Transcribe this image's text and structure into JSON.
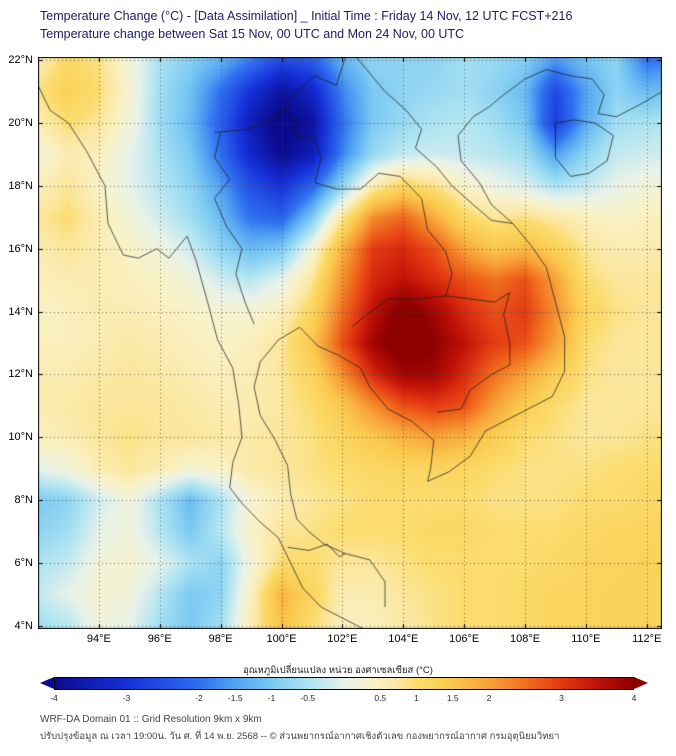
{
  "chart_data": {
    "type": "heatmap",
    "title": "Temperature Change (°C) - [Data Assimilation] _ Initial Time : Friday 14 Nov, 12 UTC FCST+216",
    "subtitle": "Temperature change between Sat 15 Nov, 00 UTC and Mon 24 Nov, 00 UTC",
    "xlabel": "",
    "ylabel": "",
    "xlim": [
      92,
      112.5
    ],
    "ylim": [
      3.9,
      22.1
    ],
    "grid": "dotted",
    "xticks": {
      "values": [
        94,
        96,
        98,
        100,
        102,
        104,
        106,
        108,
        110,
        112
      ],
      "labels": [
        "94°E",
        "96°E",
        "98°E",
        "100°E",
        "102°E",
        "104°E",
        "106°E",
        "108°E",
        "110°E",
        "112°E"
      ]
    },
    "yticks": {
      "values": [
        4,
        6,
        8,
        10,
        12,
        14,
        16,
        18,
        20,
        22
      ],
      "labels": [
        "4°N",
        "6°N",
        "8°N",
        "10°N",
        "12°N",
        "14°N",
        "16°N",
        "18°N",
        "20°N",
        "22°N"
      ]
    },
    "colorbar": {
      "label": "อุณหภูมิเปลี่ยนแปลง หน่วย องศาเซลเซียส (°C)",
      "range": [
        -4,
        4
      ],
      "ticks": [
        -4,
        -3,
        -2,
        -1.5,
        -1,
        -0.5,
        0.5,
        1,
        1.5,
        2,
        3,
        4
      ],
      "tick_labels": [
        "-4",
        "-3",
        "-2",
        "-1.5",
        "-1",
        "-0.5",
        "0.5",
        "1",
        "1.5",
        "2",
        "3",
        "4"
      ]
    },
    "color_scale": [
      [
        -4,
        "#0b0b8f"
      ],
      [
        -3,
        "#1530d8"
      ],
      [
        -2,
        "#2f6ff0"
      ],
      [
        -1.5,
        "#53a3f2"
      ],
      [
        -1,
        "#7cc9f2"
      ],
      [
        -0.5,
        "#abe3f2"
      ],
      [
        0,
        "#e8f2ea"
      ],
      [
        0.4,
        "#f9f2c8"
      ],
      [
        0.8,
        "#fce69c"
      ],
      [
        1,
        "#fbdc6d"
      ],
      [
        1.5,
        "#fac94d"
      ],
      [
        2,
        "#f7a23a"
      ],
      [
        2.5,
        "#f1701f"
      ],
      [
        3,
        "#e43b13"
      ],
      [
        3.5,
        "#c01107"
      ],
      [
        4,
        "#8c0000"
      ]
    ],
    "grid_lons": [
      92,
      93,
      94,
      95,
      96,
      97,
      98,
      99,
      100,
      101,
      102,
      103,
      104,
      105,
      106,
      107,
      108,
      109,
      110,
      111,
      112,
      113
    ],
    "grid_lats": [
      22,
      21,
      20,
      19,
      18,
      17,
      16,
      15,
      14,
      13,
      12,
      11,
      10,
      9,
      8,
      7,
      6,
      5,
      4
    ],
    "values": [
      [
        0.6,
        1.1,
        0.9,
        0.2,
        -0.5,
        -0.9,
        -1.3,
        -1.9,
        -2.6,
        -2.3,
        -1.3,
        -0.8,
        -0.8,
        -0.8,
        -0.6,
        -0.7,
        -0.9,
        -1.6,
        -1.1,
        -0.8,
        -2.0,
        -1.8
      ],
      [
        0.9,
        1.3,
        1.0,
        0.3,
        -0.6,
        -1.1,
        -2.0,
        -3.0,
        -3.8,
        -3.3,
        -1.8,
        -1.0,
        -0.8,
        -0.7,
        -0.6,
        -0.8,
        -1.2,
        -2.6,
        -1.5,
        -0.8,
        -1.2,
        -1.0
      ],
      [
        0.6,
        1.0,
        0.8,
        0.2,
        -0.6,
        -1.2,
        -2.2,
        -3.5,
        -4.2,
        -3.8,
        -2.0,
        -1.0,
        -0.7,
        -0.5,
        -0.4,
        -0.6,
        -1.0,
        -2.8,
        -1.4,
        -0.6,
        -0.5,
        -0.4
      ],
      [
        0.2,
        0.6,
        0.5,
        0.0,
        -0.5,
        -1.0,
        -2.0,
        -3.2,
        -4.0,
        -3.5,
        -1.8,
        -0.7,
        -0.3,
        -0.2,
        -0.3,
        -0.4,
        -0.6,
        -1.5,
        -0.8,
        -0.3,
        -0.2,
        -0.2
      ],
      [
        0.5,
        0.8,
        0.4,
        0.0,
        -0.4,
        -0.8,
        -1.5,
        -2.5,
        -3.0,
        -2.2,
        -0.8,
        0.6,
        1.2,
        0.9,
        0.4,
        0.1,
        -0.1,
        -0.5,
        -0.3,
        0.0,
        0.2,
        0.2
      ],
      [
        0.8,
        1.0,
        0.6,
        0.2,
        -0.2,
        -0.6,
        -1.2,
        -2.0,
        -2.2,
        -1.0,
        0.8,
        2.2,
        2.6,
        1.9,
        1.1,
        0.8,
        0.9,
        0.7,
        0.5,
        0.4,
        0.5,
        0.5
      ],
      [
        0.6,
        0.8,
        0.6,
        0.4,
        0.2,
        -0.2,
        -0.8,
        -1.2,
        -1.0,
        0.2,
        1.8,
        3.0,
        3.2,
        2.8,
        2.0,
        1.5,
        1.7,
        1.3,
        0.8,
        0.6,
        0.6,
        0.6
      ],
      [
        0.5,
        0.6,
        0.6,
        0.5,
        0.4,
        0.2,
        -0.2,
        -0.4,
        0.0,
        0.8,
        2.2,
        3.2,
        3.5,
        3.2,
        2.8,
        2.5,
        2.8,
        2.0,
        1.0,
        0.8,
        0.8,
        0.8
      ],
      [
        0.4,
        0.5,
        0.6,
        0.6,
        0.5,
        0.4,
        0.3,
        0.3,
        0.5,
        1.2,
        2.5,
        3.5,
        4.2,
        3.8,
        3.2,
        2.8,
        3.0,
        2.2,
        1.2,
        0.9,
        0.8,
        0.8
      ],
      [
        0.5,
        0.5,
        0.6,
        0.7,
        0.6,
        0.5,
        0.4,
        0.5,
        0.8,
        1.5,
        2.8,
        3.8,
        4.3,
        4.0,
        3.5,
        3.0,
        2.8,
        2.0,
        1.0,
        0.8,
        0.8,
        0.8
      ],
      [
        0.6,
        0.6,
        0.7,
        0.8,
        0.7,
        0.6,
        0.5,
        0.6,
        0.8,
        1.2,
        2.2,
        3.2,
        3.8,
        3.8,
        3.2,
        2.5,
        2.0,
        1.4,
        0.9,
        0.8,
        0.8,
        0.8
      ],
      [
        0.6,
        0.7,
        0.8,
        0.8,
        0.8,
        0.7,
        0.6,
        0.6,
        0.8,
        1.0,
        1.5,
        2.2,
        2.8,
        3.0,
        2.8,
        2.0,
        1.4,
        1.0,
        0.8,
        0.8,
        0.8,
        0.8
      ],
      [
        0.5,
        0.6,
        0.8,
        0.9,
        0.8,
        0.8,
        0.7,
        0.7,
        0.8,
        0.9,
        1.2,
        1.5,
        1.8,
        2.0,
        1.8,
        1.4,
        1.0,
        0.9,
        0.8,
        0.8,
        0.9,
        0.9
      ],
      [
        0.0,
        0.2,
        0.6,
        0.8,
        0.6,
        0.3,
        0.4,
        0.7,
        0.8,
        0.9,
        1.0,
        1.1,
        1.2,
        1.2,
        1.2,
        1.0,
        0.9,
        0.9,
        0.9,
        1.0,
        1.0,
        1.0
      ],
      [
        -1.0,
        -0.8,
        -0.2,
        0.2,
        -0.5,
        -1.2,
        -0.5,
        0.3,
        0.6,
        0.8,
        0.9,
        1.0,
        1.0,
        1.0,
        1.0,
        0.9,
        0.9,
        0.9,
        1.0,
        1.0,
        1.1,
        1.1
      ],
      [
        -0.8,
        -0.6,
        0.0,
        0.2,
        -0.4,
        -1.0,
        -0.4,
        0.4,
        0.8,
        0.9,
        1.0,
        1.0,
        1.0,
        1.1,
        1.1,
        1.0,
        1.0,
        1.0,
        1.1,
        1.2,
        1.2,
        1.2
      ],
      [
        -0.5,
        -0.3,
        0.2,
        0.3,
        0.0,
        -0.5,
        -0.8,
        0.2,
        1.0,
        1.0,
        0.8,
        0.8,
        0.9,
        1.0,
        1.0,
        1.0,
        1.0,
        1.1,
        1.2,
        1.2,
        1.3,
        1.3
      ],
      [
        -0.3,
        0.0,
        0.3,
        0.2,
        -0.4,
        -1.0,
        -0.8,
        0.5,
        1.8,
        1.2,
        0.6,
        0.6,
        0.8,
        0.9,
        1.0,
        1.0,
        1.1,
        1.2,
        1.2,
        1.3,
        1.3,
        1.3
      ],
      [
        -0.6,
        -0.4,
        0.2,
        0.0,
        -0.6,
        -1.0,
        -0.6,
        0.6,
        1.6,
        1.0,
        0.5,
        0.5,
        0.7,
        0.9,
        1.0,
        1.0,
        1.1,
        1.2,
        1.2,
        1.3,
        1.3,
        1.3
      ]
    ],
    "borders": [
      [
        [
          92,
          21.2
        ],
        [
          92.4,
          20.4
        ],
        [
          93.0,
          20.0
        ],
        [
          93.6,
          19.1
        ],
        [
          94.2,
          18.0
        ],
        [
          94.3,
          16.8
        ],
        [
          94.8,
          15.8
        ],
        [
          95.3,
          15.7
        ],
        [
          95.9,
          16.0
        ],
        [
          96.3,
          15.7
        ],
        [
          96.9,
          16.4
        ],
        [
          97.2,
          15.6
        ],
        [
          97.6,
          14.2
        ],
        [
          97.9,
          13.1
        ],
        [
          98.4,
          12.2
        ],
        [
          98.6,
          11.0
        ],
        [
          98.7,
          10.0
        ],
        [
          98.4,
          9.2
        ],
        [
          98.3,
          8.4
        ],
        [
          98.7,
          7.9
        ],
        [
          99.3,
          7.3
        ],
        [
          99.9,
          6.8
        ],
        [
          100.3,
          6.0
        ],
        [
          100.7,
          5.2
        ],
        [
          101.3,
          4.6
        ],
        [
          102.1,
          4.2
        ],
        [
          102.7,
          3.9
        ]
      ],
      [
        [
          103.4,
          4.6
        ],
        [
          103.4,
          5.4
        ],
        [
          102.9,
          6.1
        ],
        [
          102.1,
          6.3
        ],
        [
          101.4,
          6.6
        ],
        [
          100.9,
          7.0
        ],
        [
          100.5,
          7.4
        ],
        [
          100.3,
          8.2
        ],
        [
          100.2,
          9.1
        ],
        [
          99.8,
          9.9
        ],
        [
          99.3,
          10.7
        ],
        [
          99.1,
          11.6
        ],
        [
          99.3,
          12.4
        ],
        [
          99.9,
          13.1
        ],
        [
          100.6,
          13.5
        ],
        [
          101.2,
          12.9
        ],
        [
          101.9,
          12.6
        ],
        [
          102.6,
          12.2
        ],
        [
          102.9,
          11.6
        ],
        [
          103.5,
          10.9
        ],
        [
          104.3,
          10.5
        ],
        [
          105.0,
          9.9
        ],
        [
          104.9,
          9.0
        ],
        [
          104.8,
          8.6
        ],
        [
          105.5,
          8.9
        ],
        [
          106.2,
          9.4
        ],
        [
          106.7,
          10.2
        ],
        [
          107.3,
          10.5
        ],
        [
          108.1,
          10.9
        ],
        [
          108.9,
          11.3
        ],
        [
          109.3,
          12.1
        ],
        [
          109.3,
          13.2
        ],
        [
          109.0,
          14.3
        ],
        [
          108.7,
          15.4
        ],
        [
          108.2,
          16.1
        ],
        [
          107.6,
          16.8
        ],
        [
          106.9,
          17.4
        ],
        [
          106.5,
          18.1
        ],
        [
          105.9,
          18.8
        ],
        [
          105.8,
          19.6
        ],
        [
          106.3,
          20.2
        ],
        [
          106.8,
          20.5
        ],
        [
          107.3,
          20.9
        ],
        [
          108.0,
          21.4
        ],
        [
          108.7,
          21.7
        ]
      ],
      [
        [
          109.0,
          20.0
        ],
        [
          109.6,
          20.1
        ],
        [
          110.3,
          20.0
        ],
        [
          110.9,
          19.6
        ],
        [
          110.7,
          18.8
        ],
        [
          110.1,
          18.4
        ],
        [
          109.5,
          18.3
        ],
        [
          109.0,
          18.9
        ],
        [
          109.0,
          19.5
        ],
        [
          109.0,
          20.0
        ]
      ],
      [
        [
          108.7,
          21.7
        ],
        [
          109.5,
          21.5
        ],
        [
          110.2,
          21.4
        ],
        [
          110.6,
          20.9
        ],
        [
          110.4,
          20.3
        ],
        [
          111.0,
          20.2
        ],
        [
          111.8,
          20.6
        ],
        [
          112.5,
          21.0
        ]
      ],
      [
        [
          98.0,
          19.7
        ],
        [
          97.8,
          18.9
        ],
        [
          98.3,
          18.2
        ],
        [
          97.8,
          17.6
        ],
        [
          98.2,
          16.7
        ],
        [
          98.7,
          16.0
        ],
        [
          98.5,
          15.2
        ],
        [
          98.8,
          14.3
        ],
        [
          99.1,
          13.6
        ]
      ],
      [
        [
          100.1,
          20.4
        ],
        [
          100.5,
          20.1
        ],
        [
          100.4,
          19.6
        ],
        [
          101.1,
          19.5
        ],
        [
          101.3,
          18.9
        ],
        [
          101.1,
          18.1
        ],
        [
          101.8,
          17.9
        ],
        [
          102.6,
          17.9
        ],
        [
          103.2,
          18.4
        ],
        [
          103.9,
          18.3
        ],
        [
          104.6,
          17.6
        ],
        [
          104.8,
          16.6
        ],
        [
          105.4,
          15.9
        ],
        [
          105.6,
          15.2
        ],
        [
          105.4,
          14.5
        ]
      ],
      [
        [
          102.3,
          13.5
        ],
        [
          102.8,
          13.9
        ],
        [
          103.5,
          14.4
        ],
        [
          104.5,
          14.4
        ],
        [
          105.4,
          14.5
        ]
      ],
      [
        [
          105.4,
          14.5
        ],
        [
          106.2,
          14.4
        ],
        [
          107.0,
          14.3
        ],
        [
          107.5,
          14.6
        ]
      ],
      [
        [
          102.2,
          22.4
        ],
        [
          102.8,
          21.7
        ],
        [
          103.4,
          21.0
        ],
        [
          104.1,
          20.4
        ],
        [
          104.6,
          19.8
        ],
        [
          104.4,
          19.2
        ],
        [
          105.1,
          18.6
        ],
        [
          105.6,
          18.0
        ],
        [
          106.3,
          17.4
        ],
        [
          106.9,
          16.9
        ],
        [
          107.6,
          16.8
        ]
      ],
      [
        [
          105.1,
          10.8
        ],
        [
          105.9,
          10.9
        ],
        [
          106.2,
          11.5
        ],
        [
          106.9,
          12.0
        ],
        [
          107.5,
          12.3
        ],
        [
          107.5,
          13.0
        ],
        [
          107.3,
          13.9
        ],
        [
          107.5,
          14.6
        ]
      ],
      [
        [
          97.8,
          19.7
        ],
        [
          98.9,
          19.8
        ],
        [
          99.9,
          20.2
        ],
        [
          100.1,
          20.4
        ],
        [
          100.5,
          21.0
        ],
        [
          101.1,
          21.5
        ],
        [
          101.8,
          21.2
        ],
        [
          102.2,
          22.4
        ]
      ],
      [
        [
          100.2,
          6.5
        ],
        [
          100.9,
          6.4
        ],
        [
          101.5,
          6.6
        ],
        [
          101.9,
          6.2
        ],
        [
          102.1,
          6.3
        ]
      ]
    ]
  },
  "footer": {
    "line1": "WRF-DA Domain 01 :: Grid Resolution 9km x 9km",
    "line2": "ปรับปรุงข้อมูล ณ เวลา 19:00น. วัน ศ. ที่ 14 พ.ย. 2568 -- © ส่วนพยากรณ์อากาศเชิงตัวเลข กองพยากรณ์อากาศ กรมอุตุนิยมวิทยา"
  }
}
